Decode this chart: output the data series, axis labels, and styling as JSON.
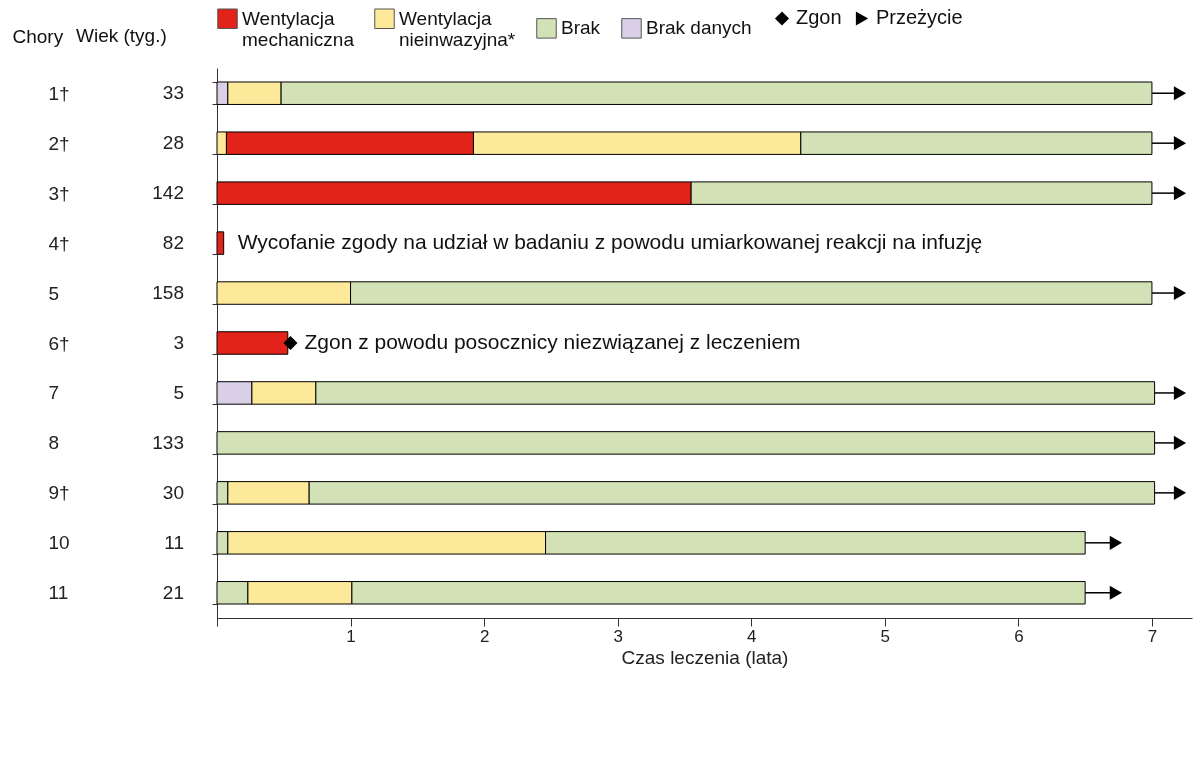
{
  "chart_data": {
    "type": "bar",
    "orientation": "horizontal",
    "xlabel": "Czas leczenia (lata)",
    "ylabel": "Chory",
    "y2label": "Wiek (tyg.)",
    "categories": [
      "1†",
      "2†",
      "3†",
      "4†",
      "5",
      "6†",
      "7",
      "8",
      "9†",
      "10",
      "11"
    ],
    "y2_categories": [
      "33",
      "28",
      "142",
      "82",
      "158",
      "3",
      "5",
      "133",
      "30",
      "11",
      "21"
    ],
    "xlim": [
      0,
      7.3
    ],
    "xticks": [
      {
        "value": 0,
        "label": null
      },
      1,
      2,
      3,
      4,
      5,
      6,
      7
    ],
    "legend": "top",
    "grid": false,
    "series": [
      {
        "name": "Wentylacja mechaniczna",
        "color": "#e2231a",
        "base": [
          null,
          0.07,
          0,
          0,
          null,
          0,
          null,
          null,
          null,
          null,
          null
        ],
        "values": [
          null,
          1.85,
          3.55,
          0.05,
          null,
          0.53,
          null,
          null,
          null,
          null,
          null
        ]
      },
      {
        "name": "Wentylacja nieinwazyjna*",
        "color": "#fde99a",
        "base": [
          0.08,
          0,
          null,
          null,
          0,
          null,
          0.26,
          null,
          0.08,
          0.08,
          0.23
        ],
        "values": [
          0.4,
          0.07,
          null,
          null,
          1.0,
          null,
          0.48,
          null,
          0.61,
          2.38,
          0.78
        ]
      },
      {
        "name": "Brak",
        "color": "#d3e2b6",
        "base": [
          0.48,
          4.37,
          3.55,
          null,
          1.0,
          null,
          0.74,
          0,
          0.69,
          2.46,
          1.01
        ],
        "values": [
          6.52,
          2.63,
          3.45,
          null,
          6.0,
          null,
          6.28,
          7.02,
          6.33,
          4.04,
          5.49
        ]
      },
      {
        "name": "Brak danych",
        "color": "#d9cfe6",
        "base": [
          0,
          null,
          null,
          null,
          null,
          null,
          0,
          null,
          null,
          null,
          null
        ],
        "values": [
          0.08,
          null,
          null,
          null,
          null,
          null,
          0.26,
          null,
          null,
          null,
          null
        ]
      },
      {
        "color": "#fde99a",
        "base": [
          null,
          1.92,
          null,
          null,
          null,
          null,
          null,
          null,
          null,
          null,
          null
        ],
        "values": [
          null,
          2.45,
          null,
          null,
          null,
          null,
          null,
          null,
          null,
          null,
          null
        ]
      },
      {
        "color": "#d3e2b6",
        "base": [
          null,
          null,
          null,
          null,
          null,
          null,
          null,
          null,
          0,
          0,
          0
        ],
        "values": [
          null,
          null,
          null,
          null,
          null,
          null,
          null,
          null,
          0.08,
          0.08,
          0.23
        ]
      },
      {
        "name": "Zgon",
        "type": "scatter",
        "marker": "diamond",
        "color": "#000000",
        "values": [
          null,
          null,
          null,
          null,
          null,
          0.55,
          null,
          null,
          null,
          null,
          null
        ]
      },
      {
        "name": "Przeżycie",
        "type": "scatter",
        "marker": "triangle",
        "color": "#000000",
        "values": [
          7.21,
          7.21,
          7.21,
          null,
          7.21,
          null,
          7.21,
          7.21,
          7.21,
          6.73,
          6.73
        ]
      }
    ],
    "annotations": [
      {
        "text": "Wycofanie zgody na udział w badaniu z powodu umiarkowanej reakcji na infuzję",
        "x": 0.05,
        "y": "4†"
      },
      {
        "text": "Zgon z powodu posocznicy niezwiązanej z leczeniem",
        "x": 0.55,
        "y": "6†"
      }
    ]
  }
}
